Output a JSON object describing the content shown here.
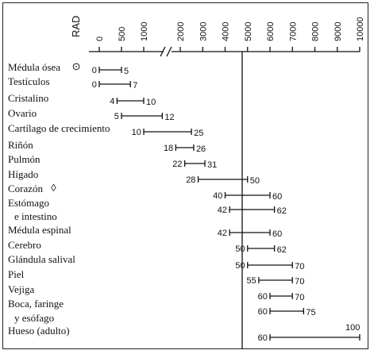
{
  "chart_data": {
    "type": "range",
    "axis_label": "RAD",
    "axis_ticks": [
      "0",
      "500",
      "1000",
      "2000",
      "3000",
      "4000",
      "5000",
      "6000",
      "7000",
      "8000",
      "9000",
      "10000"
    ],
    "ylim_note": "broken axis between 1000 and 2000",
    "reference_line": 5000,
    "rows": [
      {
        "organ": "Médula ósea",
        "symbol": "⊙",
        "low": 0,
        "high": 5,
        "low_label": "0",
        "high_label": "5"
      },
      {
        "organ": "Testículos",
        "low": 0,
        "high": 7,
        "low_label": "0",
        "high_label": "7"
      },
      {
        "organ": "Cristalino",
        "low": 4,
        "high": 10,
        "low_label": "4",
        "high_label": "10"
      },
      {
        "organ": "Ovario",
        "low": 5,
        "high": 12,
        "low_label": "5",
        "high_label": "12"
      },
      {
        "organ": "Cartílago de crecimiento",
        "low": 10,
        "high": 25,
        "low_label": "10",
        "high_label": "25"
      },
      {
        "organ": "Riñón",
        "low": 18,
        "high": 26,
        "low_label": "18",
        "high_label": "26"
      },
      {
        "organ": "Pulmón",
        "low": 22,
        "high": 31,
        "low_label": "22",
        "high_label": "31"
      },
      {
        "organ": "Hígado",
        "low": 28,
        "high": 50,
        "low_label": "28",
        "high_label": "50"
      },
      {
        "organ": "Corazón",
        "symbol": "◊",
        "low": 40,
        "high": 60,
        "low_label": "40",
        "high_label": "60"
      },
      {
        "organ": "Estómago",
        "organ2": "e intestino",
        "low": 42,
        "high": 62,
        "low_label": "42",
        "high_label": "62"
      },
      {
        "organ": "Médula espinal",
        "low": 42,
        "high": 60,
        "low_label": "42",
        "high_label": "60"
      },
      {
        "organ": "Cerebro",
        "low": 50,
        "high": 62,
        "low_label": "50",
        "high_label": "62"
      },
      {
        "organ": "Glándula salival",
        "low": 50,
        "high": 70,
        "low_label": "50",
        "high_label": "70"
      },
      {
        "organ": "Piel",
        "low": 55,
        "high": 70,
        "low_label": "55",
        "high_label": "70"
      },
      {
        "organ": "Vejiga",
        "low": 60,
        "high": 70,
        "low_label": "60",
        "high_label": "70"
      },
      {
        "organ": "Boca, faringe",
        "organ2": "y esófago",
        "low": 60,
        "high": 75,
        "low_label": "60",
        "high_label": "75"
      },
      {
        "organ": "Hueso (adulto)",
        "low": 60,
        "high": 100,
        "low_label": "60",
        "high_label": "100"
      }
    ]
  }
}
